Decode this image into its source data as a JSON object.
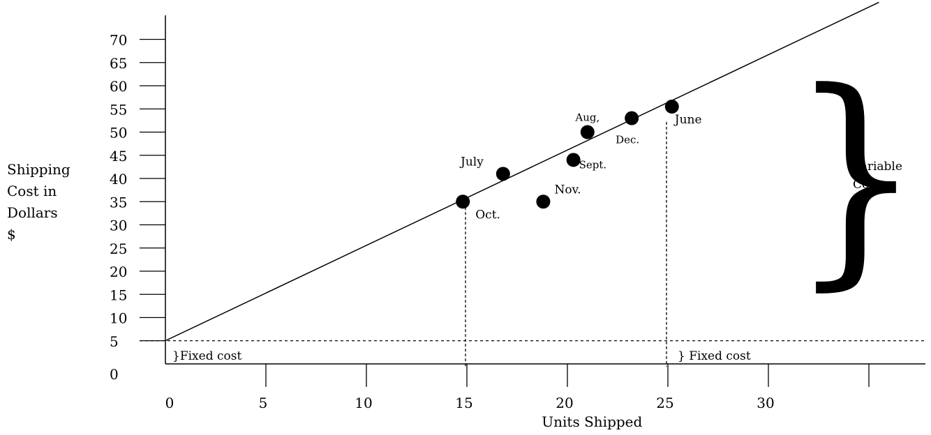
{
  "chart_data": {
    "type": "scatter",
    "title": "",
    "xlabel": "Units Shipped",
    "ylabel_lines": [
      "Shipping",
      "Cost in",
      "Dollars",
      "$"
    ],
    "x_ticks": [
      0,
      5,
      10,
      15,
      20,
      25,
      30
    ],
    "x_tick_labels": [
      "0",
      "5",
      "10",
      "15",
      "20",
      "25",
      "30"
    ],
    "y_ticks": [
      0,
      5,
      10,
      15,
      20,
      25,
      30,
      35,
      40,
      45,
      50,
      55,
      60,
      65,
      70
    ],
    "y_tick_labels": [
      "0",
      "5",
      "10",
      "15",
      "20",
      "25",
      "30",
      "35",
      "40",
      "45",
      "50",
      "55",
      "60",
      "65",
      "70"
    ],
    "xlim": [
      0,
      38
    ],
    "ylim": [
      0,
      75
    ],
    "points": [
      {
        "label": "Oct.",
        "x": 14.8,
        "y": 35,
        "label_pos": "below-right"
      },
      {
        "label": "July",
        "x": 16.8,
        "y": 41,
        "label_pos": "above-left"
      },
      {
        "label": "Nov.",
        "x": 18.8,
        "y": 35,
        "label_pos": "above-right"
      },
      {
        "label": "Sept.",
        "x": 20.3,
        "y": 44,
        "label_pos": "below-right"
      },
      {
        "label": "Aug,",
        "x": 21.0,
        "y": 50,
        "label_pos": "above"
      },
      {
        "label": "Dec.",
        "x": 23.2,
        "y": 53,
        "label_pos": "below"
      },
      {
        "label": "June",
        "x": 25.2,
        "y": 55.5,
        "label_pos": "below-right"
      }
    ],
    "fit_line": {
      "x": [
        0,
        35.5
      ],
      "y": [
        5,
        78
      ]
    },
    "fixed_cost_level": 5,
    "guide_x": [
      15,
      25
    ],
    "annotations": {
      "fixed_cost_left": "}Fixed cost",
      "fixed_cost_right": "} Fixed cost",
      "variable_cost": [
        "Variable",
        "Cost"
      ]
    },
    "grid": false,
    "legend": "none"
  }
}
